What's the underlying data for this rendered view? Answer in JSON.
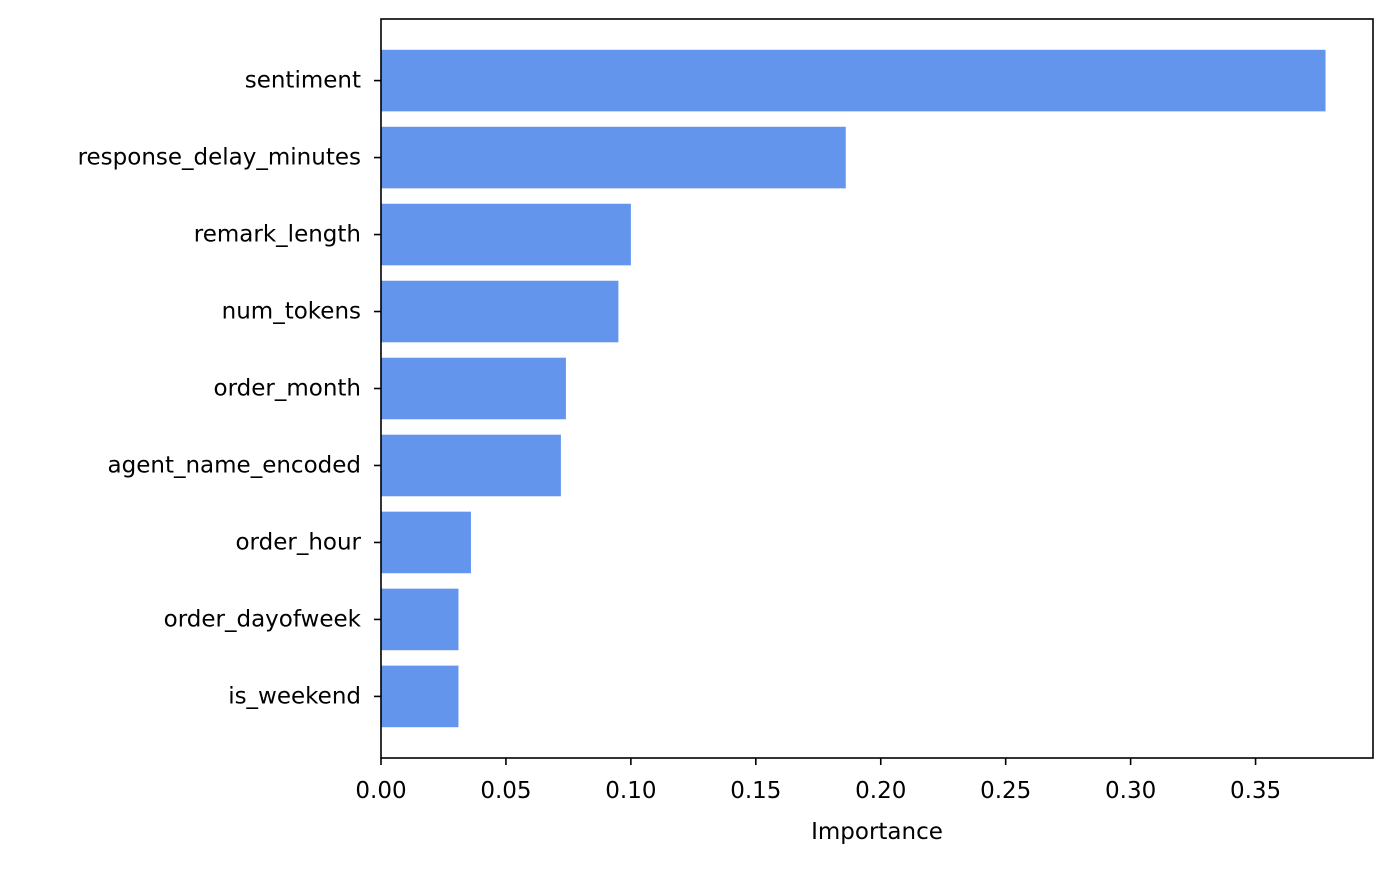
{
  "chart_data": {
    "type": "bar",
    "orientation": "horizontal",
    "title": "",
    "xlabel": "Importance",
    "ylabel": "",
    "xlim": [
      0.0,
      0.397
    ],
    "xticks": [
      0.0,
      0.05,
      0.1,
      0.15,
      0.2,
      0.25,
      0.3,
      0.35
    ],
    "xtick_labels": [
      "0.00",
      "0.05",
      "0.10",
      "0.15",
      "0.20",
      "0.25",
      "0.30",
      "0.35"
    ],
    "categories": [
      "sentiment",
      "response_delay_minutes",
      "remark_length",
      "num_tokens",
      "order_month",
      "agent_name_encoded",
      "order_hour",
      "order_dayofweek",
      "is_weekend"
    ],
    "values": [
      0.378,
      0.186,
      0.1,
      0.095,
      0.074,
      0.072,
      0.036,
      0.031,
      0.031
    ],
    "bar_color": "#6495ed",
    "grid": false,
    "legend": "none"
  }
}
